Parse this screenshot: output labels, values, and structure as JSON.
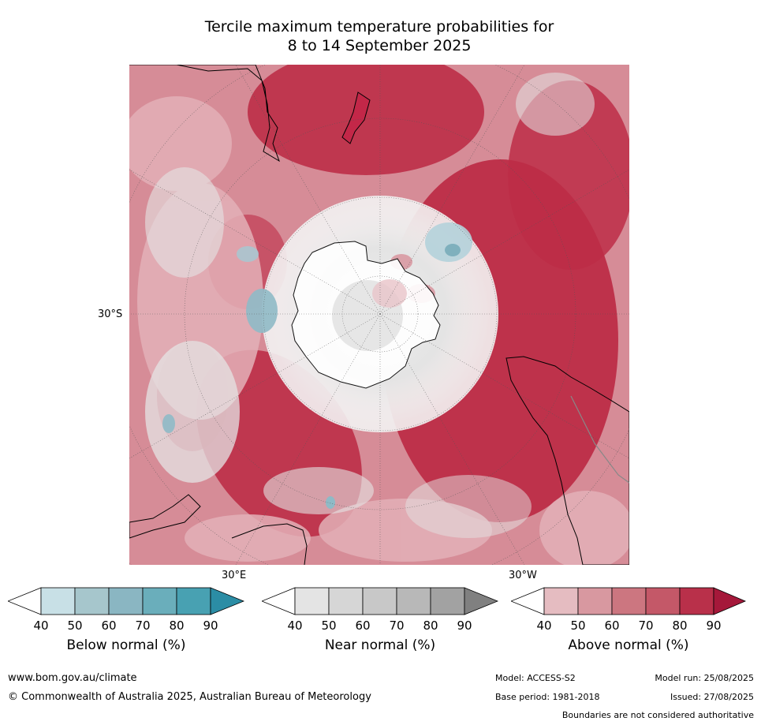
{
  "title_line1": "Tercile maximum temperature probabilities for",
  "title_line2": "8 to 14 September 2025",
  "map": {
    "lat_label": "30°S",
    "lon_label_east": "30°E",
    "lon_label_west": "30°W",
    "colors": {
      "ocean_base": "#d8919b",
      "above_strong": "#b8203f",
      "above_mid": "#c9505f",
      "above_light": "#e3b5bb",
      "near": "#e2e2e2",
      "below": "#a6c8d2",
      "below_strong": "#6aaebd",
      "land_outline": "#000000"
    }
  },
  "colorbars": [
    {
      "label": "Below normal (%)",
      "ticks": [
        "40",
        "50",
        "60",
        "70",
        "80",
        "90"
      ],
      "colors": [
        "#ffffff",
        "#c8e0e6",
        "#a6c6cc",
        "#8ab6c2",
        "#6aaebb",
        "#48a1b2",
        "#2b8da5"
      ]
    },
    {
      "label": "Near normal (%)",
      "ticks": [
        "40",
        "50",
        "60",
        "70",
        "80",
        "90"
      ],
      "colors": [
        "#ffffff",
        "#e4e4e4",
        "#d6d6d6",
        "#c8c8c8",
        "#b8b8b8",
        "#a2a2a2",
        "#808080"
      ]
    },
    {
      "label": "Above normal (%)",
      "ticks": [
        "40",
        "50",
        "60",
        "70",
        "80",
        "90"
      ],
      "colors": [
        "#ffffff",
        "#e5bcc1",
        "#d898a0",
        "#cc7680",
        "#c45868",
        "#b9304a",
        "#a5183a"
      ]
    }
  ],
  "footer": {
    "url": "www.bom.gov.au/climate",
    "copyright": "© Commonwealth of Australia 2025, Australian Bureau of Meteorology",
    "model": "Model: ACCESS-S2",
    "base_period": "Base period: 1981-2018",
    "model_run": "Model run: 25/08/2025",
    "issued": "Issued: 27/08/2025",
    "disclaimer": "Boundaries are not considered authoritative"
  }
}
